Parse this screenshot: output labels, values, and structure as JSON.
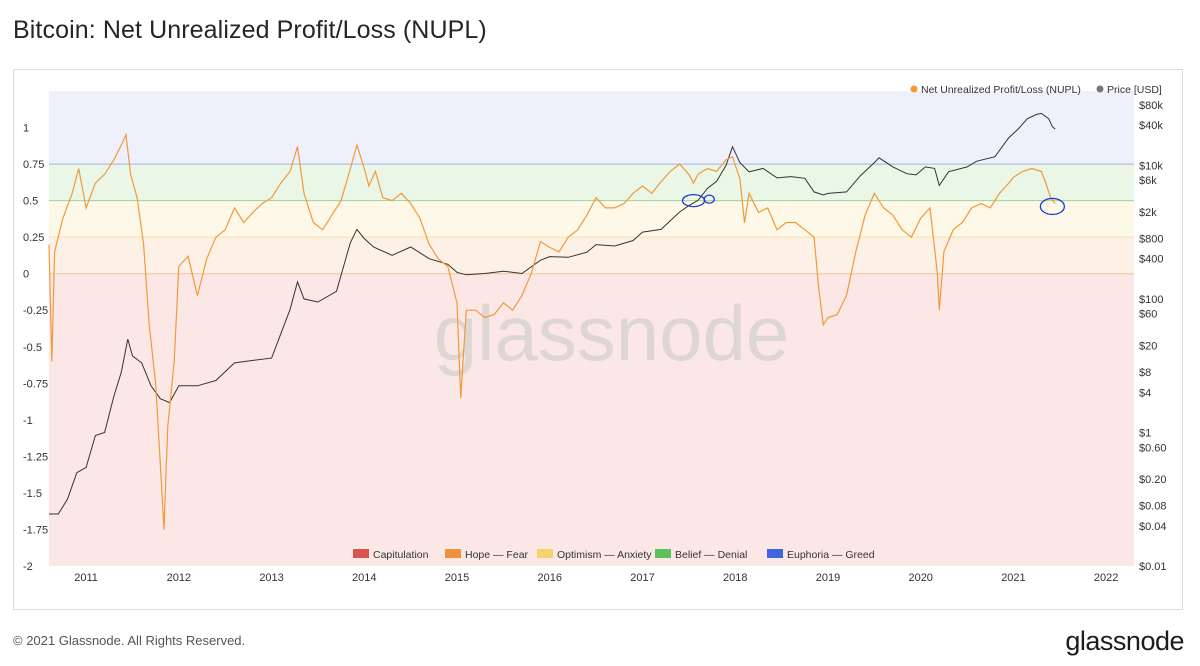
{
  "title": "Bitcoin: Net Unrealized Profit/Loss (NUPL)",
  "footer": "© 2021 Glassnode. All Rights Reserved.",
  "logo_text": "glassnode",
  "watermark": "glassnode",
  "chart_data": {
    "type": "line",
    "title": "Bitcoin: Net Unrealized Profit/Loss (NUPL)",
    "legend": [
      {
        "name": "Net Unrealized Profit/Loss (NUPL)",
        "color": "#f2993a"
      },
      {
        "name": "Price [USD]",
        "color": "#777777"
      }
    ],
    "legend_position": "top-right",
    "zone_legend": [
      {
        "name": "Capitulation",
        "color": "#d9534f"
      },
      {
        "name": "Hope — Fear",
        "color": "#f0923b"
      },
      {
        "name": "Optimism — Anxiety",
        "color": "#f3d36b"
      },
      {
        "name": "Belief — Denial",
        "color": "#5cc05c"
      },
      {
        "name": "Euphoria — Greed",
        "color": "#3f66e0"
      }
    ],
    "zone_legend_position": "bottom-center",
    "zones": [
      {
        "name": "Euphoria — Greed",
        "from": 0.75,
        "to": 1.25,
        "color": "#eef0fb"
      },
      {
        "name": "Belief — Denial",
        "from": 0.5,
        "to": 0.75,
        "color": "#eaf6e6"
      },
      {
        "name": "Optimism — Anxiety",
        "from": 0.25,
        "to": 0.5,
        "color": "#fdf8e7"
      },
      {
        "name": "Hope — Fear",
        "from": 0,
        "to": 0.25,
        "color": "#fdf1e7"
      },
      {
        "name": "Capitulation",
        "from": -2,
        "to": 0,
        "color": "#fbe8e6"
      }
    ],
    "x_ticks": [
      "2011",
      "2012",
      "2013",
      "2014",
      "2015",
      "2016",
      "2017",
      "2018",
      "2019",
      "2020",
      "2021",
      "2022"
    ],
    "y_left_ticks": [
      "1",
      "0.75",
      "0.5",
      "0.25",
      "0",
      "-0.25",
      "-0.5",
      "-0.75",
      "-1",
      "-1.25",
      "-1.5",
      "-1.75",
      "-2"
    ],
    "y_left_values": [
      1,
      0.75,
      0.5,
      0.25,
      0,
      -0.25,
      -0.5,
      -0.75,
      -1,
      -1.25,
      -1.5,
      -1.75,
      -2
    ],
    "y_left_range": [
      -2,
      1.25
    ],
    "y_right_ticks": [
      {
        "label": "$80k",
        "value": 80000
      },
      {
        "label": "$40k",
        "value": 40000
      },
      {
        "label": "$10k",
        "value": 10000
      },
      {
        "label": "$6k",
        "value": 6000
      },
      {
        "label": "$2k",
        "value": 2000
      },
      {
        "label": "$800",
        "value": 800
      },
      {
        "label": "$400",
        "value": 400
      },
      {
        "label": "$100",
        "value": 100
      },
      {
        "label": "$60",
        "value": 60
      },
      {
        "label": "$20",
        "value": 20
      },
      {
        "label": "$8",
        "value": 8
      },
      {
        "label": "$4",
        "value": 4
      },
      {
        "label": "$1",
        "value": 1
      },
      {
        "label": "$0.60",
        "value": 0.6
      },
      {
        "label": "$0.20",
        "value": 0.2
      },
      {
        "label": "$0.08",
        "value": 0.08
      },
      {
        "label": "$0.04",
        "value": 0.04
      },
      {
        "label": "$0.01",
        "value": 0.01
      }
    ],
    "y_right_scale": "log",
    "x_range": [
      2010.6,
      2022.3
    ],
    "series": [
      {
        "name": "Net Unrealized Profit/Loss (NUPL)",
        "axis": "left",
        "points": [
          [
            2010.6,
            0.2
          ],
          [
            2010.63,
            -0.6
          ],
          [
            2010.66,
            0.15
          ],
          [
            2010.75,
            0.38
          ],
          [
            2010.85,
            0.55
          ],
          [
            2010.92,
            0.72
          ],
          [
            2011.0,
            0.45
          ],
          [
            2011.1,
            0.62
          ],
          [
            2011.2,
            0.68
          ],
          [
            2011.3,
            0.78
          ],
          [
            2011.38,
            0.88
          ],
          [
            2011.43,
            0.95
          ],
          [
            2011.48,
            0.68
          ],
          [
            2011.55,
            0.52
          ],
          [
            2011.62,
            0.2
          ],
          [
            2011.68,
            -0.35
          ],
          [
            2011.75,
            -0.75
          ],
          [
            2011.8,
            -1.3
          ],
          [
            2011.84,
            -1.75
          ],
          [
            2011.88,
            -1.05
          ],
          [
            2011.95,
            -0.6
          ],
          [
            2012.0,
            0.05
          ],
          [
            2012.1,
            0.12
          ],
          [
            2012.2,
            -0.15
          ],
          [
            2012.3,
            0.1
          ],
          [
            2012.4,
            0.25
          ],
          [
            2012.5,
            0.3
          ],
          [
            2012.6,
            0.45
          ],
          [
            2012.7,
            0.35
          ],
          [
            2012.8,
            0.42
          ],
          [
            2012.9,
            0.48
          ],
          [
            2013.0,
            0.52
          ],
          [
            2013.1,
            0.62
          ],
          [
            2013.2,
            0.7
          ],
          [
            2013.28,
            0.87
          ],
          [
            2013.35,
            0.55
          ],
          [
            2013.45,
            0.35
          ],
          [
            2013.55,
            0.3
          ],
          [
            2013.65,
            0.4
          ],
          [
            2013.75,
            0.5
          ],
          [
            2013.85,
            0.72
          ],
          [
            2013.92,
            0.88
          ],
          [
            2014.0,
            0.72
          ],
          [
            2014.05,
            0.6
          ],
          [
            2014.12,
            0.7
          ],
          [
            2014.2,
            0.52
          ],
          [
            2014.3,
            0.5
          ],
          [
            2014.4,
            0.55
          ],
          [
            2014.5,
            0.48
          ],
          [
            2014.6,
            0.38
          ],
          [
            2014.7,
            0.2
          ],
          [
            2014.8,
            0.1
          ],
          [
            2014.9,
            0.05
          ],
          [
            2015.0,
            -0.2
          ],
          [
            2015.04,
            -0.85
          ],
          [
            2015.1,
            -0.25
          ],
          [
            2015.2,
            -0.25
          ],
          [
            2015.3,
            -0.3
          ],
          [
            2015.4,
            -0.28
          ],
          [
            2015.5,
            -0.2
          ],
          [
            2015.6,
            -0.25
          ],
          [
            2015.7,
            -0.15
          ],
          [
            2015.8,
            0.0
          ],
          [
            2015.9,
            0.22
          ],
          [
            2016.0,
            0.18
          ],
          [
            2016.1,
            0.15
          ],
          [
            2016.2,
            0.25
          ],
          [
            2016.3,
            0.3
          ],
          [
            2016.4,
            0.4
          ],
          [
            2016.5,
            0.52
          ],
          [
            2016.6,
            0.45
          ],
          [
            2016.7,
            0.45
          ],
          [
            2016.8,
            0.48
          ],
          [
            2016.9,
            0.55
          ],
          [
            2017.0,
            0.6
          ],
          [
            2017.1,
            0.55
          ],
          [
            2017.2,
            0.63
          ],
          [
            2017.3,
            0.7
          ],
          [
            2017.4,
            0.75
          ],
          [
            2017.5,
            0.68
          ],
          [
            2017.55,
            0.62
          ],
          [
            2017.6,
            0.68
          ],
          [
            2017.7,
            0.72
          ],
          [
            2017.8,
            0.7
          ],
          [
            2017.9,
            0.78
          ],
          [
            2017.97,
            0.8
          ],
          [
            2018.05,
            0.65
          ],
          [
            2018.1,
            0.35
          ],
          [
            2018.15,
            0.55
          ],
          [
            2018.25,
            0.42
          ],
          [
            2018.35,
            0.45
          ],
          [
            2018.45,
            0.3
          ],
          [
            2018.55,
            0.35
          ],
          [
            2018.65,
            0.35
          ],
          [
            2018.75,
            0.3
          ],
          [
            2018.85,
            0.25
          ],
          [
            2018.9,
            -0.1
          ],
          [
            2018.95,
            -0.35
          ],
          [
            2019.0,
            -0.3
          ],
          [
            2019.1,
            -0.28
          ],
          [
            2019.2,
            -0.15
          ],
          [
            2019.3,
            0.15
          ],
          [
            2019.4,
            0.4
          ],
          [
            2019.5,
            0.55
          ],
          [
            2019.6,
            0.45
          ],
          [
            2019.7,
            0.4
          ],
          [
            2019.8,
            0.3
          ],
          [
            2019.9,
            0.25
          ],
          [
            2020.0,
            0.38
          ],
          [
            2020.1,
            0.45
          ],
          [
            2020.18,
            0.0
          ],
          [
            2020.2,
            -0.25
          ],
          [
            2020.25,
            0.15
          ],
          [
            2020.35,
            0.3
          ],
          [
            2020.45,
            0.35
          ],
          [
            2020.55,
            0.45
          ],
          [
            2020.65,
            0.48
          ],
          [
            2020.75,
            0.45
          ],
          [
            2020.85,
            0.55
          ],
          [
            2020.95,
            0.62
          ],
          [
            2021.0,
            0.66
          ],
          [
            2021.1,
            0.7
          ],
          [
            2021.2,
            0.72
          ],
          [
            2021.3,
            0.7
          ],
          [
            2021.35,
            0.62
          ],
          [
            2021.4,
            0.52
          ],
          [
            2021.45,
            0.48
          ]
        ]
      },
      {
        "name": "Price [USD]",
        "axis": "right",
        "points": [
          [
            2010.6,
            0.06
          ],
          [
            2010.7,
            0.06
          ],
          [
            2010.8,
            0.1
          ],
          [
            2010.9,
            0.25
          ],
          [
            2011.0,
            0.3
          ],
          [
            2011.1,
            0.9
          ],
          [
            2011.2,
            1.0
          ],
          [
            2011.3,
            3.5
          ],
          [
            2011.38,
            8
          ],
          [
            2011.45,
            25
          ],
          [
            2011.5,
            14
          ],
          [
            2011.6,
            11
          ],
          [
            2011.7,
            5
          ],
          [
            2011.8,
            3.2
          ],
          [
            2011.9,
            2.8
          ],
          [
            2012.0,
            5
          ],
          [
            2012.2,
            5
          ],
          [
            2012.4,
            6
          ],
          [
            2012.6,
            11
          ],
          [
            2012.8,
            12
          ],
          [
            2013.0,
            13
          ],
          [
            2013.2,
            70
          ],
          [
            2013.28,
            180
          ],
          [
            2013.35,
            100
          ],
          [
            2013.5,
            90
          ],
          [
            2013.7,
            130
          ],
          [
            2013.85,
            700
          ],
          [
            2013.92,
            1100
          ],
          [
            2014.0,
            800
          ],
          [
            2014.1,
            600
          ],
          [
            2014.3,
            450
          ],
          [
            2014.5,
            600
          ],
          [
            2014.7,
            400
          ],
          [
            2014.9,
            330
          ],
          [
            2015.0,
            250
          ],
          [
            2015.1,
            230
          ],
          [
            2015.3,
            240
          ],
          [
            2015.5,
            260
          ],
          [
            2015.7,
            240
          ],
          [
            2015.9,
            380
          ],
          [
            2016.0,
            430
          ],
          [
            2016.2,
            420
          ],
          [
            2016.4,
            500
          ],
          [
            2016.5,
            650
          ],
          [
            2016.7,
            620
          ],
          [
            2016.9,
            750
          ],
          [
            2017.0,
            1000
          ],
          [
            2017.2,
            1100
          ],
          [
            2017.4,
            2000
          ],
          [
            2017.5,
            2500
          ],
          [
            2017.6,
            3000
          ],
          [
            2017.7,
            4500
          ],
          [
            2017.8,
            5800
          ],
          [
            2017.9,
            10000
          ],
          [
            2017.97,
            19000
          ],
          [
            2018.05,
            11000
          ],
          [
            2018.15,
            8000
          ],
          [
            2018.3,
            9000
          ],
          [
            2018.45,
            6500
          ],
          [
            2018.6,
            6800
          ],
          [
            2018.75,
            6400
          ],
          [
            2018.85,
            4000
          ],
          [
            2018.95,
            3600
          ],
          [
            2019.0,
            3800
          ],
          [
            2019.2,
            4000
          ],
          [
            2019.35,
            7000
          ],
          [
            2019.5,
            11000
          ],
          [
            2019.55,
            13000
          ],
          [
            2019.7,
            9500
          ],
          [
            2019.85,
            7500
          ],
          [
            2019.95,
            7200
          ],
          [
            2020.05,
            9500
          ],
          [
            2020.15,
            9000
          ],
          [
            2020.2,
            5000
          ],
          [
            2020.3,
            8000
          ],
          [
            2020.5,
            9500
          ],
          [
            2020.6,
            11500
          ],
          [
            2020.8,
            13500
          ],
          [
            2020.95,
            26000
          ],
          [
            2021.05,
            35000
          ],
          [
            2021.15,
            50000
          ],
          [
            2021.25,
            58000
          ],
          [
            2021.3,
            60000
          ],
          [
            2021.38,
            50000
          ],
          [
            2021.42,
            38000
          ],
          [
            2021.45,
            35000
          ]
        ]
      }
    ],
    "annotations": "hand-drawn blue circles near late 2017 and mid 2021"
  }
}
